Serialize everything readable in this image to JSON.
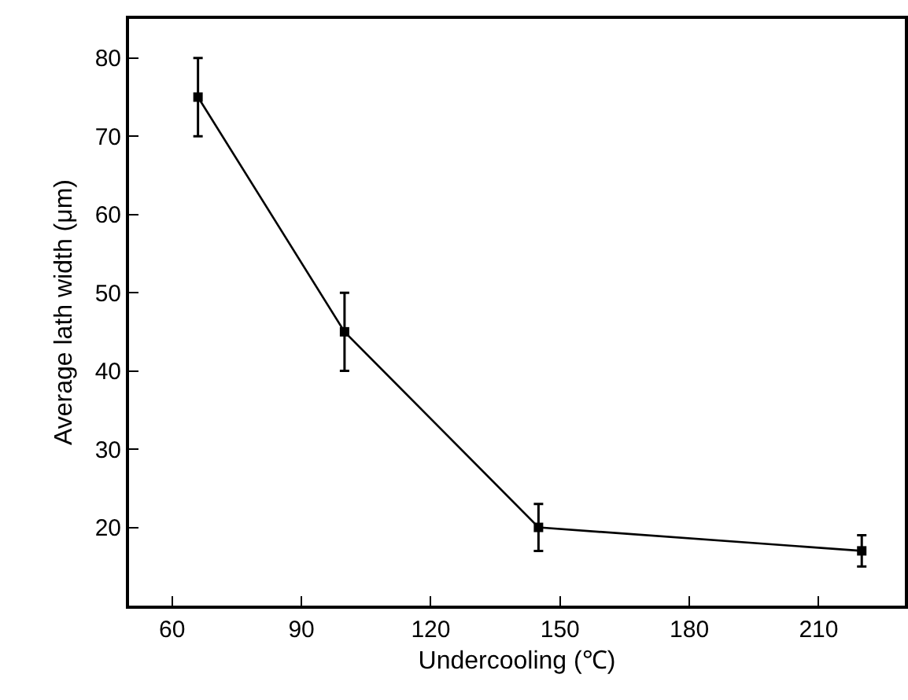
{
  "chart_data": {
    "type": "line",
    "xlabel": "Undercooling (℃)",
    "ylabel": "Average lath width (μm)",
    "x": [
      66,
      100,
      145,
      220
    ],
    "series": [
      {
        "color": "#000000",
        "values": [
          75,
          45,
          20,
          17
        ],
        "errors": [
          5,
          5,
          3,
          2
        ]
      }
    ],
    "xlim": [
      50,
      230
    ],
    "xticks": [
      60,
      90,
      120,
      150,
      180,
      210
    ],
    "ylim": [
      10,
      85
    ],
    "yticks": [
      20,
      30,
      40,
      50,
      60,
      70,
      80
    ],
    "grid": false,
    "marker": "square",
    "line_style": "solid"
  }
}
